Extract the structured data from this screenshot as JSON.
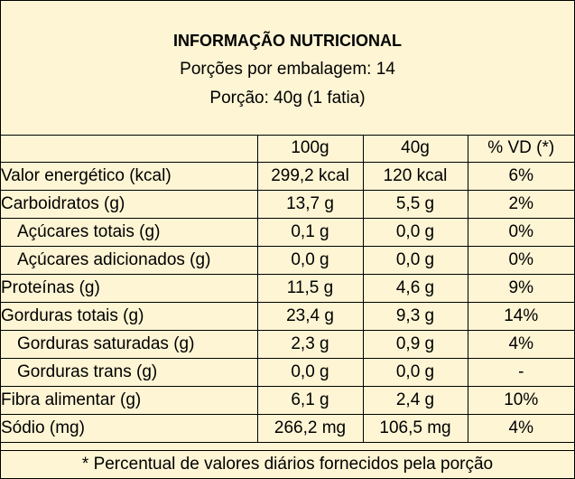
{
  "header": {
    "title": "INFORMAÇÃO NUTRICIONAL",
    "servings_per_package": "Porções por embalagem: 14",
    "serving_size": "Porção: 40g (1 fatia)"
  },
  "table": {
    "columns": [
      "100g",
      "40g",
      "% VD (*)"
    ],
    "rows": [
      {
        "name": "Valor energético (kcal)",
        "per100": "299,2 kcal",
        "perServing": "120 kcal",
        "vd": "6%"
      },
      {
        "name": "Carboidratos (g)",
        "per100": "13,7 g",
        "perServing": "5,5 g",
        "vd": "2%"
      },
      {
        "name": "Açúcares totais (g)",
        "per100": "0,1 g",
        "perServing": "0,0 g",
        "vd": "0%"
      },
      {
        "name": "Açúcares adicionados (g)",
        "per100": "0,0 g",
        "perServing": "0,0 g",
        "vd": "0%"
      },
      {
        "name": "Proteínas (g)",
        "per100": "11,5 g",
        "perServing": "4,6 g",
        "vd": "9%"
      },
      {
        "name": "Gorduras totais (g)",
        "per100": "23,4 g",
        "perServing": "9,3 g",
        "vd": "14%"
      },
      {
        "name": "Gorduras saturadas (g)",
        "per100": "2,3 g",
        "perServing": "0,9 g",
        "vd": "4%"
      },
      {
        "name": "Gorduras trans (g)",
        "per100": "0,0 g",
        "perServing": "0,0 g",
        "vd": "-"
      },
      {
        "name": "Fibra alimentar (g)",
        "per100": "6,1 g",
        "perServing": "2,4 g",
        "vd": "10%"
      },
      {
        "name": "Sódio (mg)",
        "per100": "266,2 mg",
        "perServing": "106,5 mg",
        "vd": "4%"
      }
    ]
  },
  "footnote": "* Percentual de valores diários fornecidos pela porção"
}
